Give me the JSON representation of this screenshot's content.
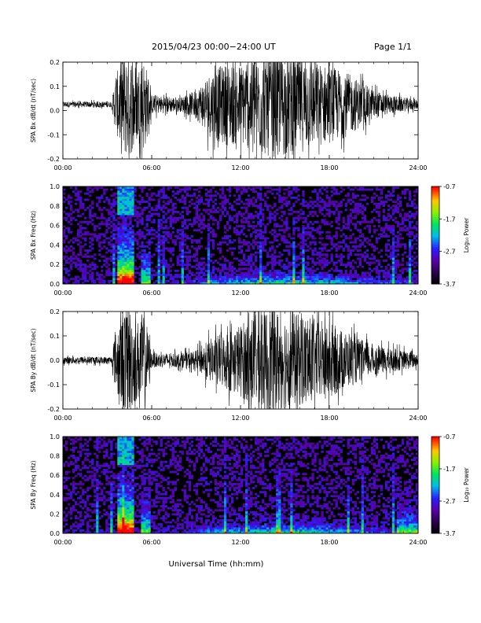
{
  "header": {
    "title": "2015/04/23  00:00−24:00 UT",
    "page": "Page 1/1"
  },
  "xlabel": "Universal Time (hh:mm)",
  "colorbar": {
    "label": "Log₁₀ Power",
    "ticks": [
      "-0.7",
      "-1.7",
      "-2.7",
      "-3.7"
    ],
    "range": [
      -3.7,
      -0.7
    ]
  },
  "chart_data": [
    {
      "type": "line",
      "ylabel": "SPA Bx dB/dt (nT/sec)",
      "xlim": [
        0,
        24
      ],
      "ylim": [
        -0.2,
        0.2
      ],
      "xticks": [
        "00:00",
        "06:00",
        "12:00",
        "18:00",
        "24:00"
      ],
      "yticks": [
        "0.2",
        "0.1",
        "0.0",
        "-0.1",
        "-0.2"
      ],
      "envelope": {
        "hours": [
          0,
          3.3,
          3.5,
          4.0,
          4.5,
          5.0,
          5.5,
          6.0,
          8.0,
          9.0,
          10.0,
          11.0,
          12.0,
          13.0,
          14.0,
          15.0,
          16.0,
          17.0,
          18.0,
          19.0,
          20.0,
          21.0,
          22.0,
          23.0,
          24.0
        ],
        "amplitude": [
          0.012,
          0.012,
          0.09,
          0.22,
          0.22,
          0.16,
          0.2,
          0.04,
          0.03,
          0.06,
          0.14,
          0.17,
          0.17,
          0.2,
          0.22,
          0.22,
          0.2,
          0.18,
          0.16,
          0.14,
          0.1,
          0.06,
          0.04,
          0.03,
          0.02
        ],
        "baseline": 0.025
      }
    },
    {
      "type": "heatmap",
      "ylabel": "SPA Bx Freq (Hz)",
      "xlim": [
        0,
        24
      ],
      "ylim": [
        0,
        1
      ],
      "xticks": [
        "00:00",
        "06:00",
        "12:00",
        "18:00",
        "24:00"
      ],
      "yticks": [
        "1.0",
        "0.8",
        "0.6",
        "0.4",
        "0.2",
        "0.0"
      ]
    },
    {
      "type": "line",
      "ylabel": "SPA By dB/dt (nT/sec)",
      "xlim": [
        0,
        24
      ],
      "ylim": [
        -0.2,
        0.2
      ],
      "xticks": [
        "00:00",
        "06:00",
        "12:00",
        "18:00",
        "24:00"
      ],
      "yticks": [
        "0.2",
        "0.1",
        "0.0",
        "-0.1",
        "-0.2"
      ],
      "envelope": {
        "hours": [
          0,
          3.3,
          3.5,
          4.0,
          4.5,
          5.0,
          5.5,
          6.0,
          8.0,
          9.0,
          10.0,
          11.0,
          12.0,
          13.0,
          14.0,
          15.0,
          16.0,
          17.0,
          18.0,
          19.0,
          20.0,
          21.0,
          22.0,
          23.0,
          24.0
        ],
        "amplitude": [
          0.015,
          0.015,
          0.1,
          0.22,
          0.22,
          0.16,
          0.21,
          0.03,
          0.03,
          0.04,
          0.09,
          0.12,
          0.15,
          0.2,
          0.22,
          0.2,
          0.19,
          0.17,
          0.16,
          0.12,
          0.09,
          0.06,
          0.05,
          0.04,
          0.03
        ],
        "baseline": 0.0
      }
    },
    {
      "type": "heatmap",
      "ylabel": "SPA By Freq (Hz)",
      "xlim": [
        0,
        24
      ],
      "ylim": [
        0,
        1
      ],
      "xticks": [
        "00:00",
        "06:00",
        "12:00",
        "18:00",
        "24:00"
      ],
      "yticks": [
        "1.0",
        "0.8",
        "0.6",
        "0.4",
        "0.2",
        "0.0"
      ]
    }
  ]
}
